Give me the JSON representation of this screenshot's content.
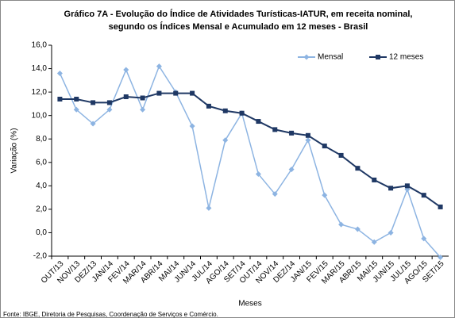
{
  "chart_data": {
    "type": "line",
    "title": "Gráfico 7A - Evolução do Índice de Atividades Turísticas-IATUR, em receita nominal,",
    "subtitle": "segundo os Índices Mensal e Acumulado em 12 meses - Brasil",
    "y_label": "Variação (%)",
    "x_label": "Meses",
    "source": "Fonte: IBGE, Diretoria de Pesquisas, Coordenação de Serviços e Comércio.",
    "categories": [
      "OUT/13",
      "NOV/13",
      "DEZ/13",
      "JAN/14",
      "FEV/14",
      "MAR/14",
      "ABR/14",
      "MAI/14",
      "JUN/14",
      "JUL/14",
      "AGO/14",
      "SET/14",
      "OUT/14",
      "NOV/14",
      "DEZ/14",
      "JAN/15",
      "FEV/15",
      "MAR/15",
      "ABR/15",
      "MAI/15",
      "JUN/15",
      "JUL/15",
      "AGO/15",
      "SET/15"
    ],
    "series": [
      {
        "name": "Mensal",
        "color": "#8db4e2",
        "marker": "diamond",
        "values": [
          13.6,
          10.5,
          9.3,
          10.5,
          13.9,
          10.5,
          14.2,
          12.0,
          9.1,
          2.1,
          7.9,
          10.2,
          5.0,
          3.3,
          5.4,
          7.9,
          3.2,
          0.7,
          0.3,
          -0.8,
          0.0,
          3.7,
          -0.5,
          -2.1
        ]
      },
      {
        "name": "12 meses",
        "color": "#1f3864",
        "marker": "square",
        "values": [
          11.4,
          11.4,
          11.1,
          11.1,
          11.6,
          11.5,
          11.9,
          11.9,
          11.9,
          10.8,
          10.4,
          10.2,
          9.5,
          8.8,
          8.5,
          8.3,
          7.4,
          6.6,
          5.5,
          4.5,
          3.8,
          4.0,
          3.2,
          2.2
        ]
      }
    ],
    "ylim": [
      -2,
      16
    ],
    "yticks": [
      {
        "value": -2,
        "label": "-2,0"
      },
      {
        "value": 0,
        "label": "0,0"
      },
      {
        "value": 2,
        "label": "2,0"
      },
      {
        "value": 4,
        "label": "4,0"
      },
      {
        "value": 6,
        "label": "6,0"
      },
      {
        "value": 8,
        "label": "8,0"
      },
      {
        "value": 10,
        "label": "10,0"
      },
      {
        "value": 12,
        "label": "12,0"
      },
      {
        "value": 14,
        "label": "14,0"
      },
      {
        "value": 16,
        "label": "16,0"
      }
    ],
    "grid": false,
    "legend": "top-right"
  }
}
